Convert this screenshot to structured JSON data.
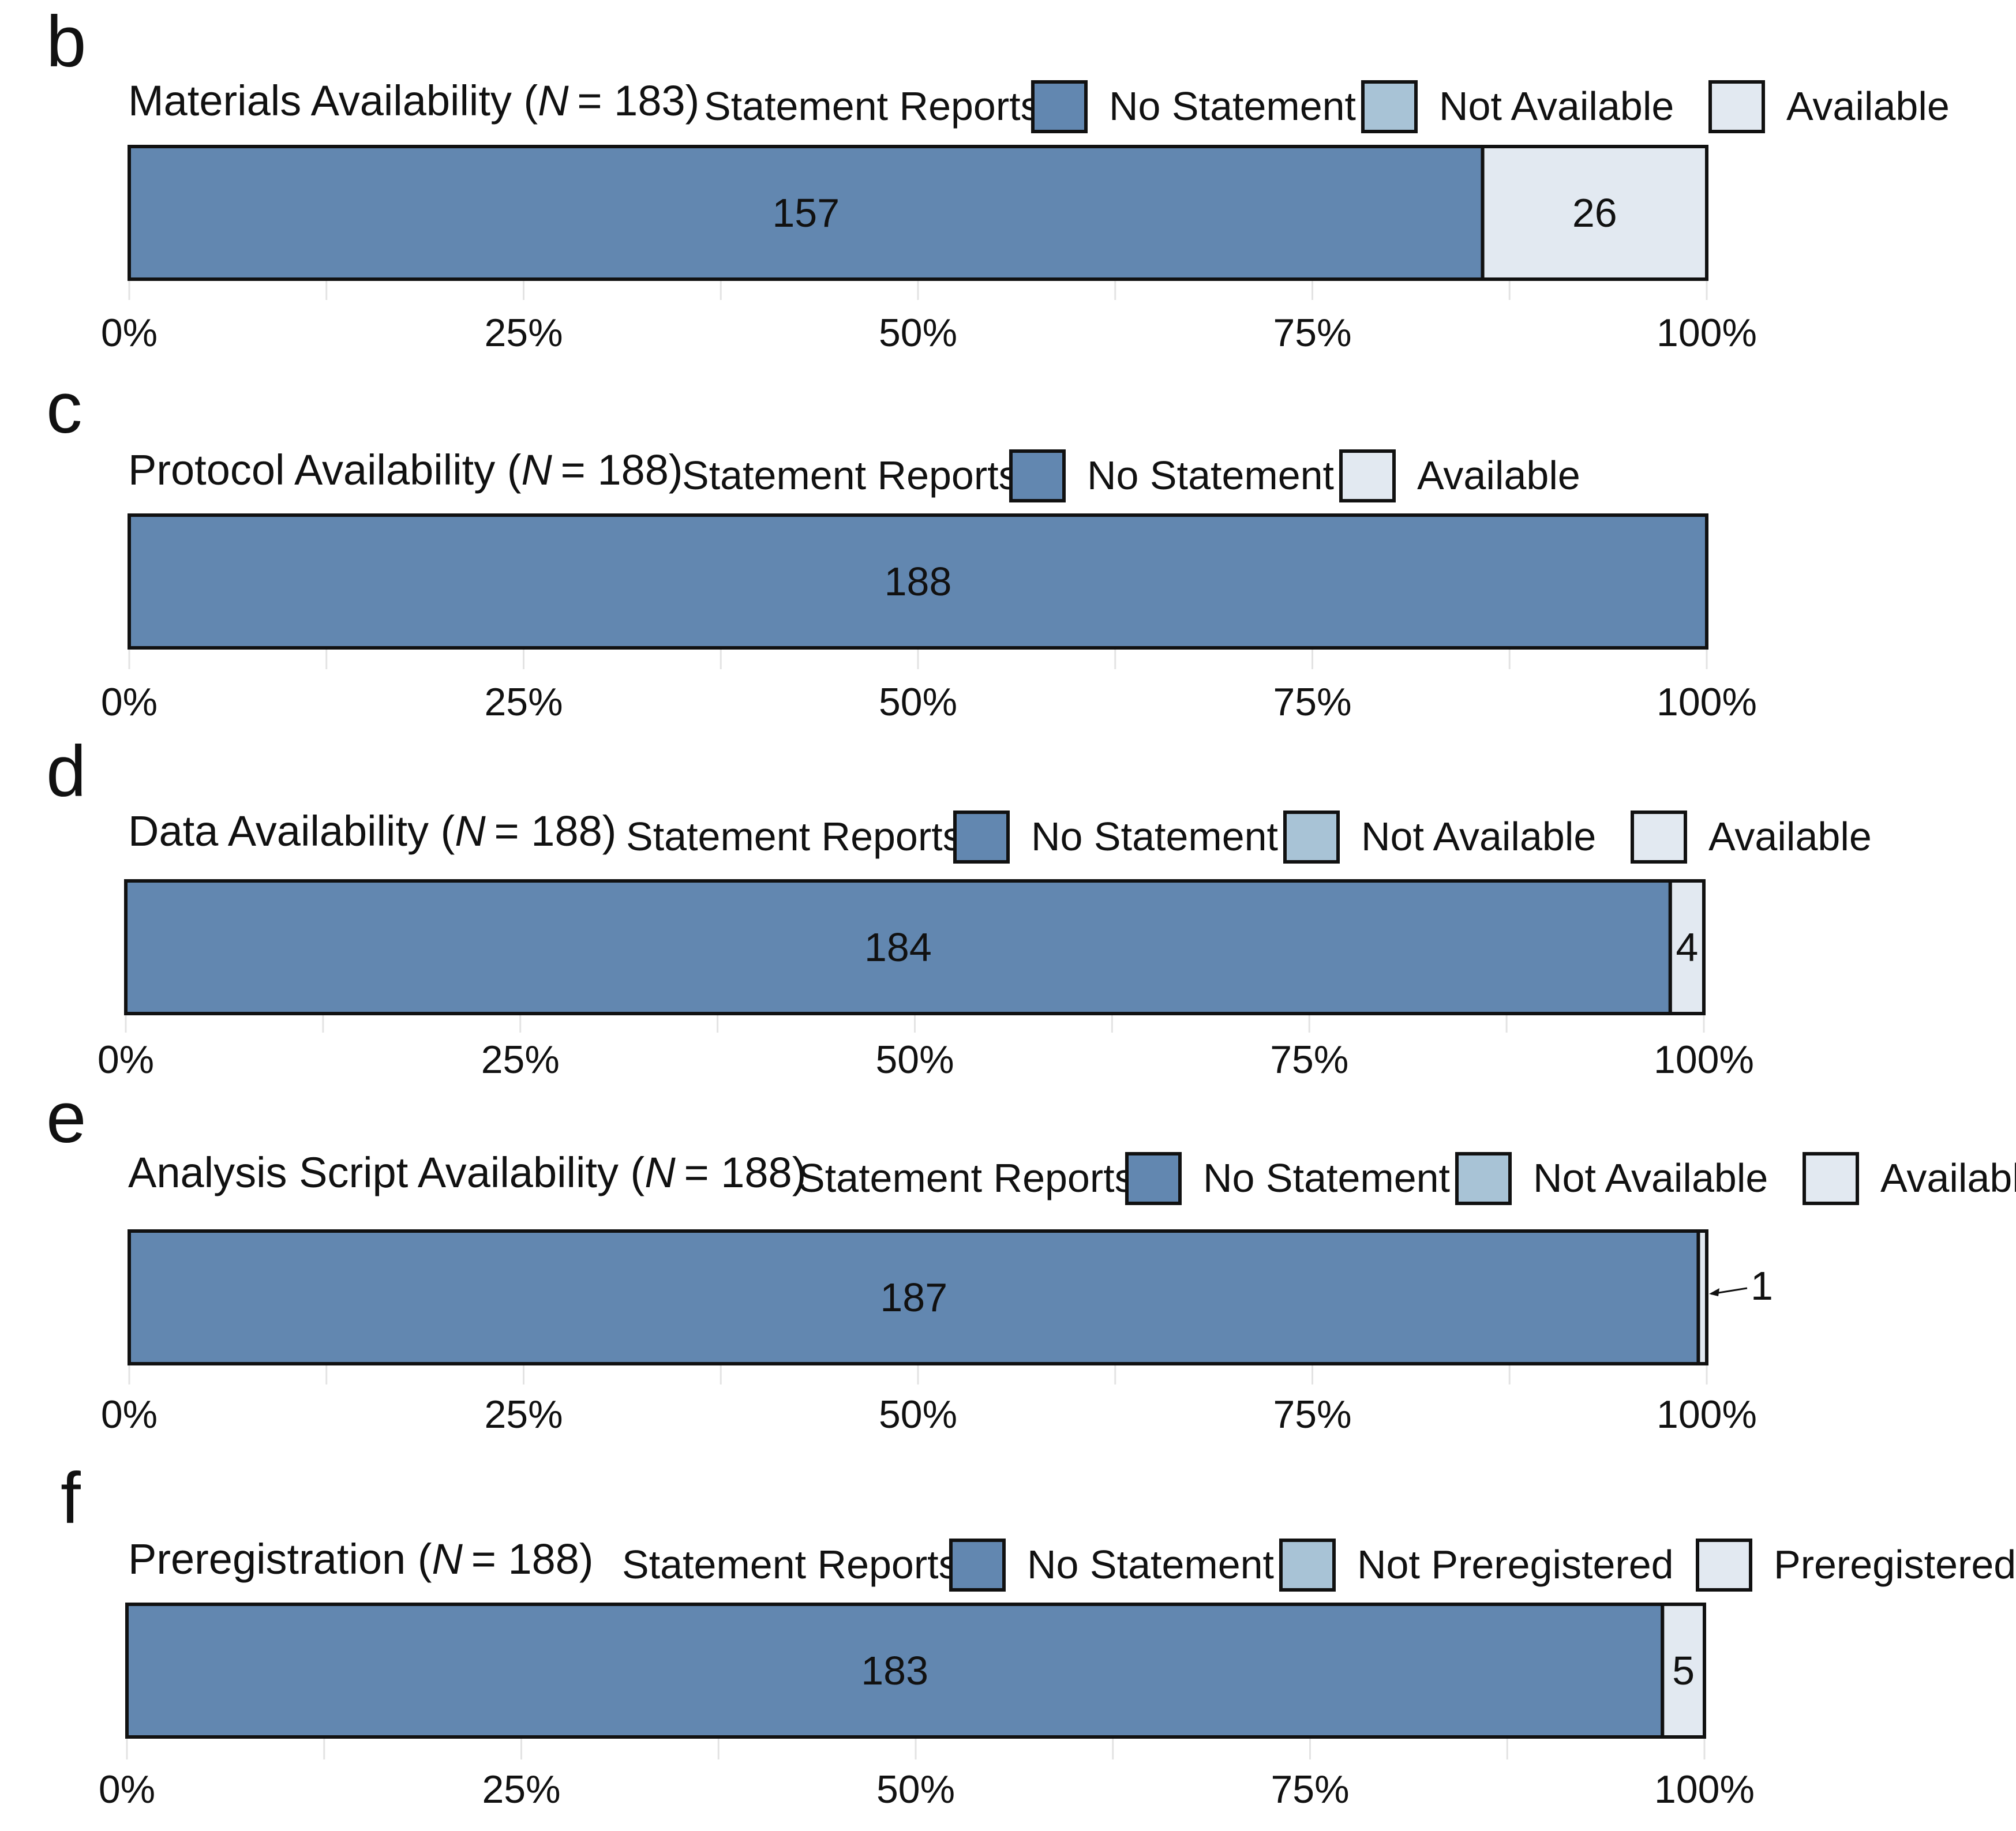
{
  "colors": {
    "No Statement": "#6287b0",
    "Not Available": "#a8c3d6",
    "Available": "#e2e9f1",
    "Not Preregistered": "#a8c3d6",
    "Preregistered": "#e2e9f1",
    "stroke": "#111111",
    "grid": "#e3e3e3"
  },
  "legend_prefix": "Statement Reports:",
  "chart_data": [
    {
      "type": "bar",
      "orientation": "horizontal-stacked-100",
      "panel": "b",
      "title": "Materials Availability (",
      "n_label": "N",
      "n_value": "= 183)",
      "legend": [
        "No Statement",
        "Not Available",
        "Available"
      ],
      "segments": [
        {
          "category": "No Statement",
          "value": 157,
          "label": "157"
        },
        {
          "category": "Available",
          "value": 26,
          "label": "26"
        }
      ],
      "xlim": [
        0,
        100
      ],
      "xticks": [
        "0%",
        "25%",
        "50%",
        "75%",
        "100%"
      ]
    },
    {
      "type": "bar",
      "orientation": "horizontal-stacked-100",
      "panel": "c",
      "title": "Protocol Availability (",
      "n_label": "N",
      "n_value": "= 188)",
      "legend": [
        "No Statement",
        "Available"
      ],
      "segments": [
        {
          "category": "No Statement",
          "value": 188,
          "label": "188"
        }
      ],
      "xlim": [
        0,
        100
      ],
      "xticks": [
        "0%",
        "25%",
        "50%",
        "75%",
        "100%"
      ]
    },
    {
      "type": "bar",
      "orientation": "horizontal-stacked-100",
      "panel": "d",
      "title": "Data Availability (",
      "n_label": "N",
      "n_value": "= 188)",
      "legend": [
        "No Statement",
        "Not Available",
        "Available"
      ],
      "segments": [
        {
          "category": "No Statement",
          "value": 184,
          "label": "184"
        },
        {
          "category": "Available",
          "value": 4,
          "label": "4"
        }
      ],
      "xlim": [
        0,
        100
      ],
      "xticks": [
        "0%",
        "25%",
        "50%",
        "75%",
        "100%"
      ]
    },
    {
      "type": "bar",
      "orientation": "horizontal-stacked-100",
      "panel": "e",
      "title": "Analysis Script Availability (",
      "n_label": "N",
      "n_value": "= 188)",
      "legend": [
        "No Statement",
        "Not Available",
        "Available"
      ],
      "segments": [
        {
          "category": "No Statement",
          "value": 187,
          "label": "187"
        },
        {
          "category": "Available",
          "value": 1,
          "label": "1",
          "callout": true
        }
      ],
      "xlim": [
        0,
        100
      ],
      "xticks": [
        "0%",
        "25%",
        "50%",
        "75%",
        "100%"
      ]
    },
    {
      "type": "bar",
      "orientation": "horizontal-stacked-100",
      "panel": "f",
      "title": "Preregistration (",
      "n_label": "N",
      "n_value": "= 188)",
      "legend": [
        "No Statement",
        "Not Preregistered",
        "Preregistered"
      ],
      "segments": [
        {
          "category": "No Statement",
          "value": 183,
          "label": "183"
        },
        {
          "category": "Preregistered",
          "value": 5,
          "label": "5"
        }
      ],
      "xlim": [
        0,
        100
      ],
      "xticks": [
        "0%",
        "25%",
        "50%",
        "75%",
        "100%"
      ]
    }
  ]
}
